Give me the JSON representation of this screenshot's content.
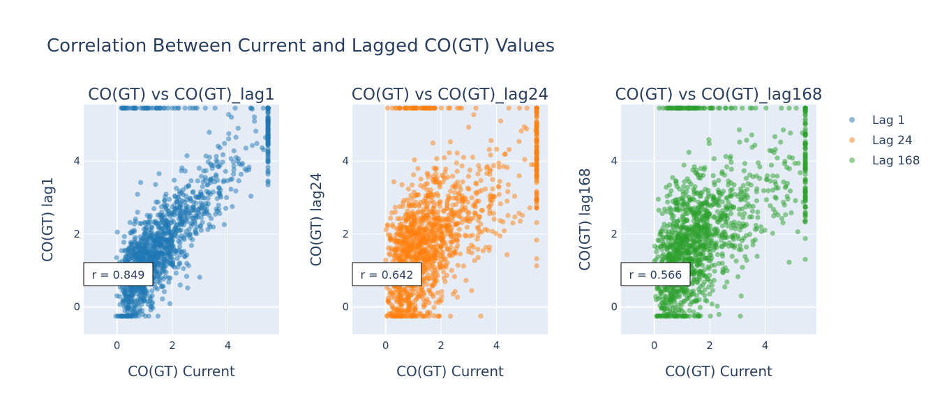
{
  "title": "Correlation Between Current and Lagged CO(GT) Values",
  "legend": [
    {
      "label": "Lag 1",
      "color": "#1f77b4"
    },
    {
      "label": "Lag 24",
      "color": "#ff7f0e"
    },
    {
      "label": "Lag 168",
      "color": "#2ca02c"
    }
  ],
  "chart_data": [
    {
      "type": "scatter",
      "title": "CO(GT) vs CO(GT)_lag1",
      "xlabel": "CO(GT) Current",
      "ylabel": "CO(GT) lag1",
      "series": [
        {
          "name": "Lag 1",
          "color": "#1f77b4",
          "r": 0.849
        }
      ],
      "xlim": [
        -1.2,
        5.85
      ],
      "ylim": [
        -0.75,
        5.55
      ],
      "xticks": [
        0,
        2,
        4
      ],
      "yticks": [
        0,
        2,
        4
      ],
      "annotation": "r = 0.849",
      "points_note": "dense cloud, x and y clipped at ~5.45"
    },
    {
      "type": "scatter",
      "title": "CO(GT) vs CO(GT)_lag24",
      "xlabel": "CO(GT) Current",
      "ylabel": "CO(GT) lag24",
      "series": [
        {
          "name": "Lag 24",
          "color": "#ff7f0e",
          "r": 0.642
        }
      ],
      "xlim": [
        -1.2,
        5.85
      ],
      "ylim": [
        -0.75,
        5.55
      ],
      "xticks": [
        0,
        2,
        4
      ],
      "yticks": [
        0,
        2,
        4
      ],
      "annotation": "r = 0.642"
    },
    {
      "type": "scatter",
      "title": "CO(GT) vs CO(GT)_lag168",
      "xlabel": "CO(GT) Current",
      "ylabel": "CO(GT) lag168",
      "series": [
        {
          "name": "Lag 168",
          "color": "#2ca02c",
          "r": 0.566
        }
      ],
      "xlim": [
        -1.2,
        5.85
      ],
      "ylim": [
        -0.75,
        5.55
      ],
      "xticks": [
        0,
        2,
        4
      ],
      "yticks": [
        0,
        2,
        4
      ],
      "annotation": "r = 0.566"
    }
  ]
}
